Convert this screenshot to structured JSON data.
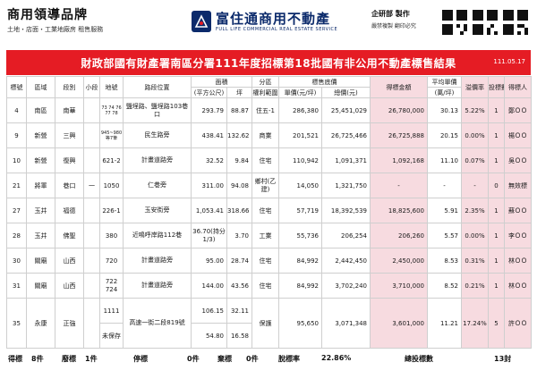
{
  "header": {
    "brand_title": "商用領導品牌",
    "brand_sub": "土地・店面・工業地廠房 租售服務",
    "logo_name": "富住通商用不動產",
    "logo_en": "FULL LIFE COMMERCIAL REAL ESTATE SERVICE",
    "credit_a": "企研部 製作",
    "credit_b": "嚴禁複製 翻印必究"
  },
  "banner": {
    "title": "財政部國有財產署南區分署111年度招標第18批國有非公用不動產標售結果",
    "date": "111.05.17"
  },
  "columns": {
    "no": "標號",
    "district": "區域",
    "section": "段別",
    "subsection": "小段",
    "lot": "地號",
    "road": "路段位置",
    "area": "面積",
    "area_sqm": "(平方公尺)",
    "area_ping": "坪",
    "zone": "分區",
    "zone_sub": "權利範圍",
    "bid_base": "標售底價",
    "price_unit": "單價(元/坪)",
    "total_price": "總價(元)",
    "award_amount": "得標金額",
    "avg_price": "平均單價",
    "avg_unit": "(萬/坪)",
    "premium": "溢價率",
    "bidders": "投標數",
    "winner": "得標人"
  },
  "rows": [
    {
      "no": "4",
      "district": "南區",
      "section": "南華",
      "subsection": "",
      "lot": "73 74 76 77 78",
      "road": "鹽埕路、鹽埕路103巷口",
      "sqm": "293.79",
      "ping": "88.87",
      "zone": "住五-1",
      "unit": "286,380",
      "total": "25,451,029",
      "award": "26,780,000",
      "avg": "30.13",
      "premium": "5.22%",
      "bidders": "1",
      "winner": "鄭ＯＯ"
    },
    {
      "no": "9",
      "district": "新營",
      "section": "三興",
      "subsection": "",
      "lot": "945~980 等7筆",
      "road": "民生路旁",
      "sqm": "438.41",
      "ping": "132.62",
      "zone": "商業",
      "unit": "201,521",
      "total": "26,725,466",
      "award": "26,725,888",
      "avg": "20.15",
      "premium": "0.00%",
      "bidders": "1",
      "winner": "楊ＯＯ"
    },
    {
      "no": "10",
      "district": "新營",
      "section": "復興",
      "subsection": "",
      "lot": "621-2",
      "road": "計畫道路旁",
      "sqm": "32.52",
      "ping": "9.84",
      "zone": "住宅",
      "unit": "110,942",
      "total": "1,091,371",
      "award": "1,092,168",
      "avg": "11.10",
      "premium": "0.07%",
      "bidders": "1",
      "winner": "吳ＯＯ"
    },
    {
      "no": "21",
      "district": "將軍",
      "section": "巷口",
      "subsection": "一",
      "lot": "1050",
      "road": "仁巷旁",
      "sqm": "311.00",
      "ping": "94.08",
      "zone": "鄉村(乙建)",
      "unit": "14,050",
      "total": "1,321,750",
      "award": "-",
      "avg": "-",
      "premium": "-",
      "bidders": "0",
      "winner": "無效標"
    },
    {
      "no": "27",
      "district": "玉井",
      "section": "福德",
      "subsection": "",
      "lot": "226-1",
      "road": "玉安街旁",
      "sqm": "1,053.41",
      "ping": "318.66",
      "zone": "住宅",
      "unit": "57,719",
      "total": "18,392,539",
      "award": "18,825,600",
      "avg": "5.91",
      "premium": "2.35%",
      "bidders": "1",
      "winner": "蘇ＯＯ"
    },
    {
      "no": "28",
      "district": "玉井",
      "section": "佛聖",
      "subsection": "",
      "lot": "380",
      "road": "近鳴呼岸路112巷",
      "sqm": "36.70(持分1/3)",
      "ping": "3.70",
      "zone": "工業",
      "unit": "55,736",
      "total": "206,254",
      "award": "206,260",
      "avg": "5.57",
      "premium": "0.00%",
      "bidders": "1",
      "winner": "李ＯＯ"
    },
    {
      "no": "30",
      "district": "關廟",
      "section": "山西",
      "subsection": "",
      "lot": "720",
      "road": "計畫道路旁",
      "sqm": "95.00",
      "ping": "28.74",
      "zone": "住宅",
      "unit": "84,992",
      "total": "2,442,450",
      "award": "2,450,000",
      "avg": "8.53",
      "premium": "0.31%",
      "bidders": "1",
      "winner": "林ＯＯ"
    },
    {
      "no": "31",
      "district": "關廟",
      "section": "山西",
      "subsection": "",
      "lot": "722 724",
      "road": "計畫道路旁",
      "sqm": "144.00",
      "ping": "43.56",
      "zone": "住宅",
      "unit": "84,992",
      "total": "3,702,240",
      "award": "3,710,000",
      "avg": "8.52",
      "premium": "0.21%",
      "bidders": "1",
      "winner": "林ＯＯ"
    }
  ],
  "row35": {
    "no": "35",
    "district": "永康",
    "section": "正強",
    "lot_a": "1111",
    "lot_b": "未保存",
    "road": "高速一街二段819號",
    "sqm_a": "106.15",
    "ping_a": "32.11",
    "sqm_b": "54.80",
    "ping_b": "16.58",
    "zone": "保護",
    "unit": "95,650",
    "total": "3,071,348",
    "award": "3,601,000",
    "avg": "11.21",
    "premium": "17.24%",
    "bidders": "5",
    "winner": "許ＯＯ"
  },
  "footer": {
    "won_label": "得標",
    "won_value": "8件",
    "fail_label": "廢標",
    "fail_value": "1件",
    "stop_label": "停標",
    "stop_value": "0件",
    "abandon_label": "棄標",
    "abandon_value": "0件",
    "rate_label": "脫標率",
    "rate_value": "22.86%",
    "total_label": "總投標數",
    "total_value": "13封"
  },
  "colors": {
    "banner": "#e51c24",
    "pink": "#f7dbe0",
    "logo": "#0b2a6b"
  }
}
